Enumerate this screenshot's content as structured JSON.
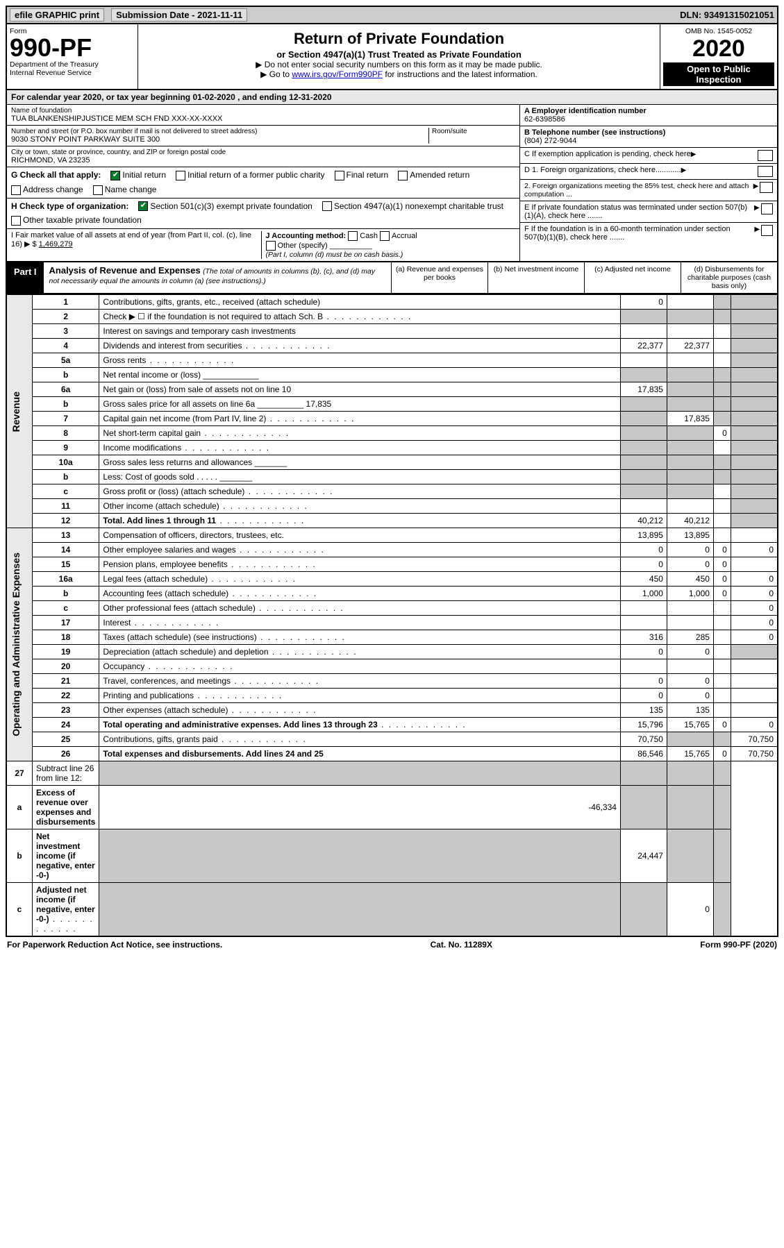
{
  "top": {
    "efile": "efile GRAPHIC print",
    "submission": "Submission Date - 2021-11-11",
    "dln": "DLN: 93491315021051"
  },
  "header": {
    "form_label": "Form",
    "form_number": "990-PF",
    "dept": "Department of the Treasury",
    "irs": "Internal Revenue Service",
    "title": "Return of Private Foundation",
    "subtitle": "or Section 4947(a)(1) Trust Treated as Private Foundation",
    "note1": "▶ Do not enter social security numbers on this form as it may be made public.",
    "note2_pre": "▶ Go to ",
    "note2_link": "www.irs.gov/Form990PF",
    "note2_post": " for instructions and the latest information.",
    "omb": "OMB No. 1545-0052",
    "year": "2020",
    "open": "Open to Public Inspection"
  },
  "calendar_line": "For calendar year 2020, or tax year beginning 01-02-2020 , and ending 12-31-2020",
  "foundation": {
    "name_lbl": "Name of foundation",
    "name": "TUA BLANKENSHIPJUSTICE MEM SCH FND XXX-XX-XXXX",
    "addr_lbl": "Number and street (or P.O. box number if mail is not delivered to street address)",
    "addr": "9030 STONY POINT PARKWAY SUITE 300",
    "room_lbl": "Room/suite",
    "city_lbl": "City or town, state or province, country, and ZIP or foreign postal code",
    "city": "RICHMOND, VA  23235",
    "ein_lbl": "A Employer identification number",
    "ein": "62-6398586",
    "phone_lbl": "B Telephone number (see instructions)",
    "phone": "(804) 272-9044",
    "c_lbl": "C If exemption application is pending, check here",
    "d1_lbl": "D 1. Foreign organizations, check here............",
    "d2_lbl": "2. Foreign organizations meeting the 85% test, check here and attach computation ...",
    "e_lbl": "E If private foundation status was terminated under section 507(b)(1)(A), check here .......",
    "f_lbl": "F If the foundation is in a 60-month termination under section 507(b)(1)(B), check here .......",
    "g_lbl": "G Check all that apply:",
    "g_opts": [
      "Initial return",
      "Initial return of a former public charity",
      "Final return",
      "Amended return",
      "Address change",
      "Name change"
    ],
    "h_lbl": "H Check type of organization:",
    "h_opts": [
      "Section 501(c)(3) exempt private foundation",
      "Section 4947(a)(1) nonexempt charitable trust",
      "Other taxable private foundation"
    ],
    "i_lbl": "I Fair market value of all assets at end of year (from Part II, col. (c), line 16) ▶ $",
    "i_val": "1,469,279",
    "j_lbl": "J Accounting method:",
    "j_opts": [
      "Cash",
      "Accrual",
      "Other (specify)"
    ],
    "j_note": "(Part I, column (d) must be on cash basis.)"
  },
  "part1": {
    "label": "Part I",
    "title": "Analysis of Revenue and Expenses",
    "title_note": "(The total of amounts in columns (b), (c), and (d) may not necessarily equal the amounts in column (a) (see instructions).)",
    "cols": {
      "a": "(a) Revenue and expenses per books",
      "b": "(b) Net investment income",
      "c": "(c) Adjusted net income",
      "d": "(d) Disbursements for charitable purposes (cash basis only)"
    }
  },
  "sections": {
    "revenue": "Revenue",
    "expenses": "Operating and Administrative Expenses"
  },
  "rows": [
    {
      "n": "1",
      "t": "Contributions, gifts, grants, etc., received (attach schedule)",
      "a": "0",
      "b": "",
      "c": "g",
      "d": "g"
    },
    {
      "n": "2",
      "t": "Check ▶ ☐ if the foundation is not required to attach Sch. B",
      "a": "g",
      "b": "g",
      "c": "g",
      "d": "g",
      "dots": true
    },
    {
      "n": "3",
      "t": "Interest on savings and temporary cash investments",
      "a": "",
      "b": "",
      "c": "",
      "d": "g"
    },
    {
      "n": "4",
      "t": "Dividends and interest from securities",
      "a": "22,377",
      "b": "22,377",
      "c": "",
      "d": "g",
      "dots": true
    },
    {
      "n": "5a",
      "t": "Gross rents",
      "a": "",
      "b": "",
      "c": "",
      "d": "g",
      "dots": true
    },
    {
      "n": "b",
      "t": "Net rental income or (loss) ____________",
      "a": "g",
      "b": "g",
      "c": "g",
      "d": "g"
    },
    {
      "n": "6a",
      "t": "Net gain or (loss) from sale of assets not on line 10",
      "a": "17,835",
      "b": "g",
      "c": "g",
      "d": "g"
    },
    {
      "n": "b",
      "t": "Gross sales price for all assets on line 6a __________ 17,835",
      "a": "g",
      "b": "g",
      "c": "g",
      "d": "g"
    },
    {
      "n": "7",
      "t": "Capital gain net income (from Part IV, line 2)",
      "a": "g",
      "b": "17,835",
      "c": "g",
      "d": "g",
      "dots": true
    },
    {
      "n": "8",
      "t": "Net short-term capital gain",
      "a": "g",
      "b": "g",
      "c": "0",
      "d": "g",
      "dots": true
    },
    {
      "n": "9",
      "t": "Income modifications",
      "a": "g",
      "b": "g",
      "c": "",
      "d": "g",
      "dots": true
    },
    {
      "n": "10a",
      "t": "Gross sales less returns and allowances _______",
      "a": "g",
      "b": "g",
      "c": "g",
      "d": "g"
    },
    {
      "n": "b",
      "t": "Less: Cost of goods sold   . . . . .  _______",
      "a": "g",
      "b": "g",
      "c": "g",
      "d": "g"
    },
    {
      "n": "c",
      "t": "Gross profit or (loss) (attach schedule)",
      "a": "g",
      "b": "g",
      "c": "",
      "d": "g",
      "dots": true
    },
    {
      "n": "11",
      "t": "Other income (attach schedule)",
      "a": "",
      "b": "",
      "c": "",
      "d": "g",
      "dots": true
    },
    {
      "n": "12",
      "t": "Total. Add lines 1 through 11",
      "a": "40,212",
      "b": "40,212",
      "c": "",
      "d": "g",
      "dots": true,
      "bold": true
    }
  ],
  "exp_rows": [
    {
      "n": "13",
      "t": "Compensation of officers, directors, trustees, etc.",
      "a": "13,895",
      "b": "13,895",
      "c": "",
      "d": ""
    },
    {
      "n": "14",
      "t": "Other employee salaries and wages",
      "a": "0",
      "b": "0",
      "c": "0",
      "d": "0",
      "dots": true
    },
    {
      "n": "15",
      "t": "Pension plans, employee benefits",
      "a": "0",
      "b": "0",
      "c": "0",
      "d": "",
      "dots": true
    },
    {
      "n": "16a",
      "t": "Legal fees (attach schedule)",
      "a": "450",
      "b": "450",
      "c": "0",
      "d": "0",
      "dots": true
    },
    {
      "n": "b",
      "t": "Accounting fees (attach schedule)",
      "a": "1,000",
      "b": "1,000",
      "c": "0",
      "d": "0",
      "dots": true
    },
    {
      "n": "c",
      "t": "Other professional fees (attach schedule)",
      "a": "",
      "b": "",
      "c": "",
      "d": "0",
      "dots": true
    },
    {
      "n": "17",
      "t": "Interest",
      "a": "",
      "b": "",
      "c": "",
      "d": "0",
      "dots": true
    },
    {
      "n": "18",
      "t": "Taxes (attach schedule) (see instructions)",
      "a": "316",
      "b": "285",
      "c": "",
      "d": "0",
      "dots": true
    },
    {
      "n": "19",
      "t": "Depreciation (attach schedule) and depletion",
      "a": "0",
      "b": "0",
      "c": "",
      "d": "g",
      "dots": true
    },
    {
      "n": "20",
      "t": "Occupancy",
      "a": "",
      "b": "",
      "c": "",
      "d": "",
      "dots": true
    },
    {
      "n": "21",
      "t": "Travel, conferences, and meetings",
      "a": "0",
      "b": "0",
      "c": "",
      "d": "",
      "dots": true
    },
    {
      "n": "22",
      "t": "Printing and publications",
      "a": "0",
      "b": "0",
      "c": "",
      "d": "",
      "dots": true
    },
    {
      "n": "23",
      "t": "Other expenses (attach schedule)",
      "a": "135",
      "b": "135",
      "c": "",
      "d": "",
      "dots": true
    },
    {
      "n": "24",
      "t": "Total operating and administrative expenses. Add lines 13 through 23",
      "a": "15,796",
      "b": "15,765",
      "c": "0",
      "d": "0",
      "dots": true,
      "bold": true
    },
    {
      "n": "25",
      "t": "Contributions, gifts, grants paid",
      "a": "70,750",
      "b": "g",
      "c": "g",
      "d": "70,750",
      "dots": true
    },
    {
      "n": "26",
      "t": "Total expenses and disbursements. Add lines 24 and 25",
      "a": "86,546",
      "b": "15,765",
      "c": "0",
      "d": "70,750",
      "bold": true
    }
  ],
  "bottom_rows": [
    {
      "n": "27",
      "t": "Subtract line 26 from line 12:",
      "a": "g",
      "b": "g",
      "c": "g",
      "d": "g"
    },
    {
      "n": "a",
      "t": "Excess of revenue over expenses and disbursements",
      "a": "-46,334",
      "b": "g",
      "c": "g",
      "d": "g",
      "bold": true
    },
    {
      "n": "b",
      "t": "Net investment income (if negative, enter -0-)",
      "a": "g",
      "b": "24,447",
      "c": "g",
      "d": "g",
      "bold": true
    },
    {
      "n": "c",
      "t": "Adjusted net income (if negative, enter -0-)",
      "a": "g",
      "b": "g",
      "c": "0",
      "d": "g",
      "bold": true,
      "dots": true
    }
  ],
  "footer": {
    "left": "For Paperwork Reduction Act Notice, see instructions.",
    "center": "Cat. No. 11289X",
    "right": "Form 990-PF (2020)"
  },
  "colors": {
    "grey": "#c8c8c8",
    "topbar_bg": "#cccccc",
    "check_green": "#0a7a2f",
    "link": "#0000cc"
  }
}
